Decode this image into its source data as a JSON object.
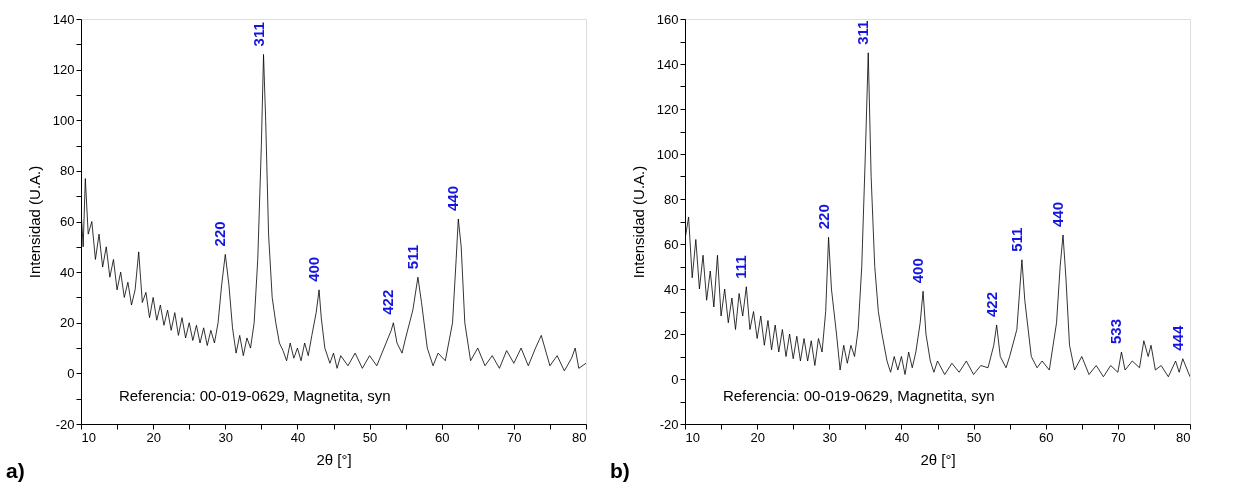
{
  "chart_data": [
    {
      "type": "line",
      "xlabel": "2θ [°]",
      "ylabel": "Intensidad (U.A.)",
      "grid": false,
      "marker": "none",
      "line_style": "solid",
      "xlim": [
        10,
        80
      ],
      "ylim": [
        -20,
        140
      ],
      "xticks": [
        10,
        {
          "value": 15,
          "label": null
        },
        20,
        {
          "value": 25,
          "label": null
        },
        30,
        {
          "value": 35,
          "label": null
        },
        40,
        {
          "value": 45,
          "label": null
        },
        50,
        {
          "value": 55,
          "label": null
        },
        60,
        {
          "value": 65,
          "label": null
        },
        70,
        {
          "value": 75,
          "label": null
        },
        80
      ],
      "yticks": [
        -20,
        {
          "value": -10,
          "label": null
        },
        0,
        {
          "value": 10,
          "label": null
        },
        20,
        {
          "value": 30,
          "label": null
        },
        40,
        {
          "value": 50,
          "label": null
        },
        60,
        {
          "value": 70,
          "label": null
        },
        80,
        {
          "value": 90,
          "label": null
        },
        100,
        {
          "value": 110,
          "label": null
        },
        120,
        {
          "value": 130,
          "label": null
        },
        140
      ],
      "series": [
        {
          "color": "#000000",
          "x": [
            10,
            10.3,
            10.6,
            11,
            11.5,
            12,
            12.5,
            13,
            13.5,
            14,
            14.5,
            15,
            15.5,
            16,
            16.5,
            17,
            17.5,
            18,
            18.5,
            19,
            19.5,
            20,
            20.5,
            21,
            21.5,
            22,
            22.5,
            23,
            23.5,
            24,
            24.5,
            25,
            25.5,
            26,
            26.5,
            27,
            27.5,
            28,
            28.5,
            29,
            29.5,
            30,
            30.5,
            31,
            31.5,
            32,
            32.5,
            33,
            33.5,
            34,
            34.5,
            35,
            35.3,
            35.6,
            36,
            36.5,
            37,
            37.5,
            38,
            38.5,
            39,
            39.5,
            40,
            40.5,
            41,
            41.5,
            42,
            42.6,
            43,
            43.3,
            43.8,
            44.5,
            45,
            45.5,
            46,
            47,
            48,
            49,
            50,
            51,
            52,
            53,
            53.3,
            53.8,
            54.5,
            55,
            56,
            56.7,
            57.2,
            58,
            58.8,
            59.5,
            60.5,
            61.5,
            62,
            62.3,
            62.7,
            63.2,
            64,
            65,
            66,
            67,
            68,
            69,
            70,
            71,
            72,
            73,
            73.8,
            74.5,
            75,
            76,
            77,
            78,
            78.5,
            79,
            80
          ],
          "values": [
            65,
            50,
            77,
            55,
            60,
            45,
            55,
            42,
            50,
            38,
            45,
            33,
            40,
            30,
            36,
            27,
            33,
            48,
            28,
            32,
            22,
            30,
            21,
            27,
            19,
            25,
            17,
            24,
            15,
            22,
            14,
            20,
            13,
            19,
            12,
            18,
            11,
            17,
            12,
            20,
            35,
            47,
            35,
            18,
            8,
            15,
            7,
            14,
            10,
            20,
            45,
            90,
            126,
            100,
            55,
            30,
            20,
            12,
            9,
            5,
            12,
            6,
            10,
            5,
            12,
            7,
            15,
            24,
            33,
            22,
            10,
            4,
            8,
            2,
            7,
            3,
            8,
            2,
            7,
            3,
            10,
            17,
            20,
            12,
            8,
            14,
            25,
            38,
            28,
            10,
            3,
            8,
            5,
            20,
            45,
            61,
            50,
            20,
            5,
            10,
            3,
            7,
            2,
            9,
            4,
            10,
            3,
            10,
            15,
            8,
            3,
            7,
            1,
            6,
            10,
            2,
            4
          ]
        }
      ],
      "annotations": [
        "Referencia: 00-019-0629, Magnetita, syn",
        "a)",
        {
          "text": "220",
          "x": 30,
          "y": 47
        },
        {
          "text": "311",
          "x": 35.3,
          "y": 126
        },
        {
          "text": "400",
          "x": 43,
          "y": 33
        },
        {
          "text": "422",
          "x": 53.3,
          "y": 20
        },
        {
          "text": "511",
          "x": 56.7,
          "y": 38
        },
        {
          "text": "440",
          "x": 62.3,
          "y": 61
        }
      ]
    },
    {
      "type": "line",
      "xlabel": "2θ [°]",
      "ylabel": "Intensidad (U.A.)",
      "grid": false,
      "marker": "none",
      "line_style": "solid",
      "xlim": [
        10,
        80
      ],
      "ylim": [
        -20,
        160
      ],
      "xticks": [
        10,
        {
          "value": 15,
          "label": null
        },
        20,
        {
          "value": 25,
          "label": null
        },
        30,
        {
          "value": 35,
          "label": null
        },
        40,
        {
          "value": 45,
          "label": null
        },
        50,
        {
          "value": 55,
          "label": null
        },
        60,
        {
          "value": 65,
          "label": null
        },
        70,
        {
          "value": 75,
          "label": null
        },
        80
      ],
      "yticks": [
        -20,
        {
          "value": -10,
          "label": null
        },
        0,
        {
          "value": 10,
          "label": null
        },
        20,
        {
          "value": 30,
          "label": null
        },
        40,
        {
          "value": 50,
          "label": null
        },
        60,
        {
          "value": 70,
          "label": null
        },
        80,
        {
          "value": 90,
          "label": null
        },
        100,
        {
          "value": 110,
          "label": null
        },
        120,
        {
          "value": 130,
          "label": null
        },
        140,
        {
          "value": 150,
          "label": null
        },
        160
      ],
      "series": [
        {
          "color": "#000000",
          "x": [
            10,
            10.5,
            11,
            11.5,
            12,
            12.5,
            13,
            13.5,
            14,
            14.5,
            15,
            15.5,
            16,
            16.5,
            17,
            17.5,
            18,
            18.5,
            19,
            19.5,
            20,
            20.5,
            21,
            21.5,
            22,
            22.5,
            23,
            23.5,
            24,
            24.5,
            25,
            25.5,
            26,
            26.5,
            27,
            27.5,
            28,
            28.5,
            29,
            29.5,
            29.9,
            30.3,
            31,
            31.5,
            32,
            32.5,
            33,
            33.5,
            34,
            34.5,
            35,
            35.4,
            35.8,
            36.3,
            36.8,
            37.3,
            38,
            38.5,
            39,
            39.5,
            40,
            40.5,
            41,
            41.5,
            42,
            42.6,
            43,
            43.4,
            44,
            44.5,
            45,
            46,
            47,
            48,
            49,
            50,
            51,
            52,
            52.8,
            53.2,
            53.7,
            54.5,
            55,
            56,
            56.7,
            57.1,
            58,
            58.8,
            59.5,
            60.5,
            61.5,
            62,
            62.4,
            62.8,
            63.3,
            64,
            65,
            66,
            67,
            68,
            69,
            70,
            70.5,
            71,
            72,
            73,
            73.6,
            74.2,
            74.6,
            75.2,
            76,
            77,
            78,
            78.5,
            79,
            80
          ],
          "values": [
            62,
            72,
            45,
            62,
            40,
            55,
            35,
            48,
            32,
            55,
            28,
            40,
            25,
            36,
            22,
            38,
            28,
            41,
            22,
            30,
            18,
            28,
            15,
            26,
            13,
            24,
            12,
            22,
            10,
            20,
            9,
            19,
            8,
            18,
            8,
            17,
            6,
            18,
            12,
            30,
            63,
            40,
            20,
            4,
            15,
            7,
            15,
            10,
            22,
            50,
            100,
            145,
            90,
            50,
            30,
            20,
            8,
            3,
            10,
            4,
            10,
            2,
            12,
            5,
            12,
            25,
            39,
            20,
            8,
            3,
            8,
            2,
            7,
            3,
            8,
            2,
            6,
            5,
            15,
            24,
            10,
            5,
            10,
            22,
            53,
            35,
            10,
            5,
            8,
            4,
            25,
            50,
            64,
            45,
            15,
            4,
            10,
            2,
            6,
            1,
            6,
            3,
            12,
            4,
            8,
            5,
            17,
            10,
            15,
            4,
            6,
            1,
            8,
            3,
            9,
            1
          ]
        }
      ],
      "annotations": [
        "Referencia: 00-019-0629, Magnetita, syn",
        "b)",
        {
          "text": "111",
          "x": 18.5,
          "y": 41
        },
        {
          "text": "220",
          "x": 29.9,
          "y": 63
        },
        {
          "text": "311",
          "x": 35.4,
          "y": 145
        },
        {
          "text": "400",
          "x": 43,
          "y": 39
        },
        {
          "text": "422",
          "x": 53.2,
          "y": 24
        },
        {
          "text": "511",
          "x": 56.7,
          "y": 53
        },
        {
          "text": "440",
          "x": 62.4,
          "y": 64
        },
        {
          "text": "533",
          "x": 70.5,
          "y": 12
        },
        {
          "text": "444",
          "x": 79,
          "y": 9
        }
      ]
    }
  ]
}
